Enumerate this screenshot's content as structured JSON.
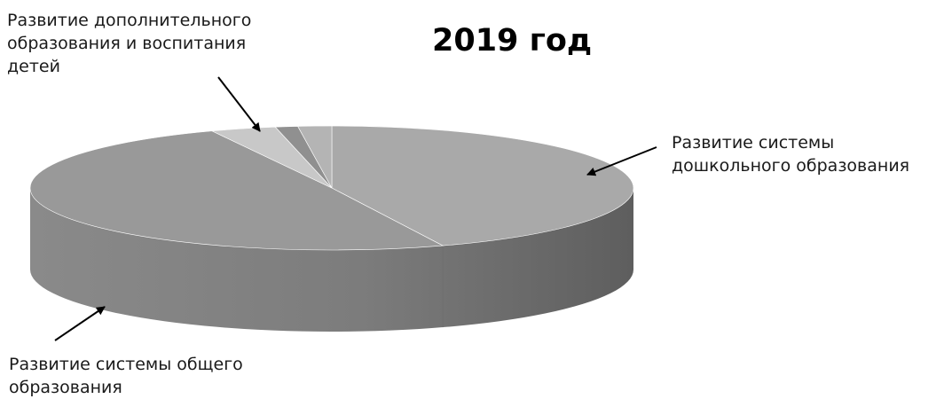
{
  "chart_data": {
    "type": "pie",
    "title": "2019 год",
    "slices": [
      {
        "label": [
          "Развитие системы",
          "дошкольного образования"
        ],
        "value": 44.0,
        "color": "#a9a9a9"
      },
      {
        "label": [
          "Развитие системы общего",
          "образования"
        ],
        "value": 49.5,
        "color": "#999999"
      },
      {
        "label": [
          "Развитие дополнительного",
          "образования и воспитания",
          "детей"
        ],
        "value": 3.5,
        "color": "#c8c8c8"
      },
      {
        "label": [],
        "value": 1.2,
        "color": "#909090"
      },
      {
        "label": [],
        "value": 1.8,
        "color": "#b4b4b4"
      }
    ],
    "style": "3d"
  }
}
